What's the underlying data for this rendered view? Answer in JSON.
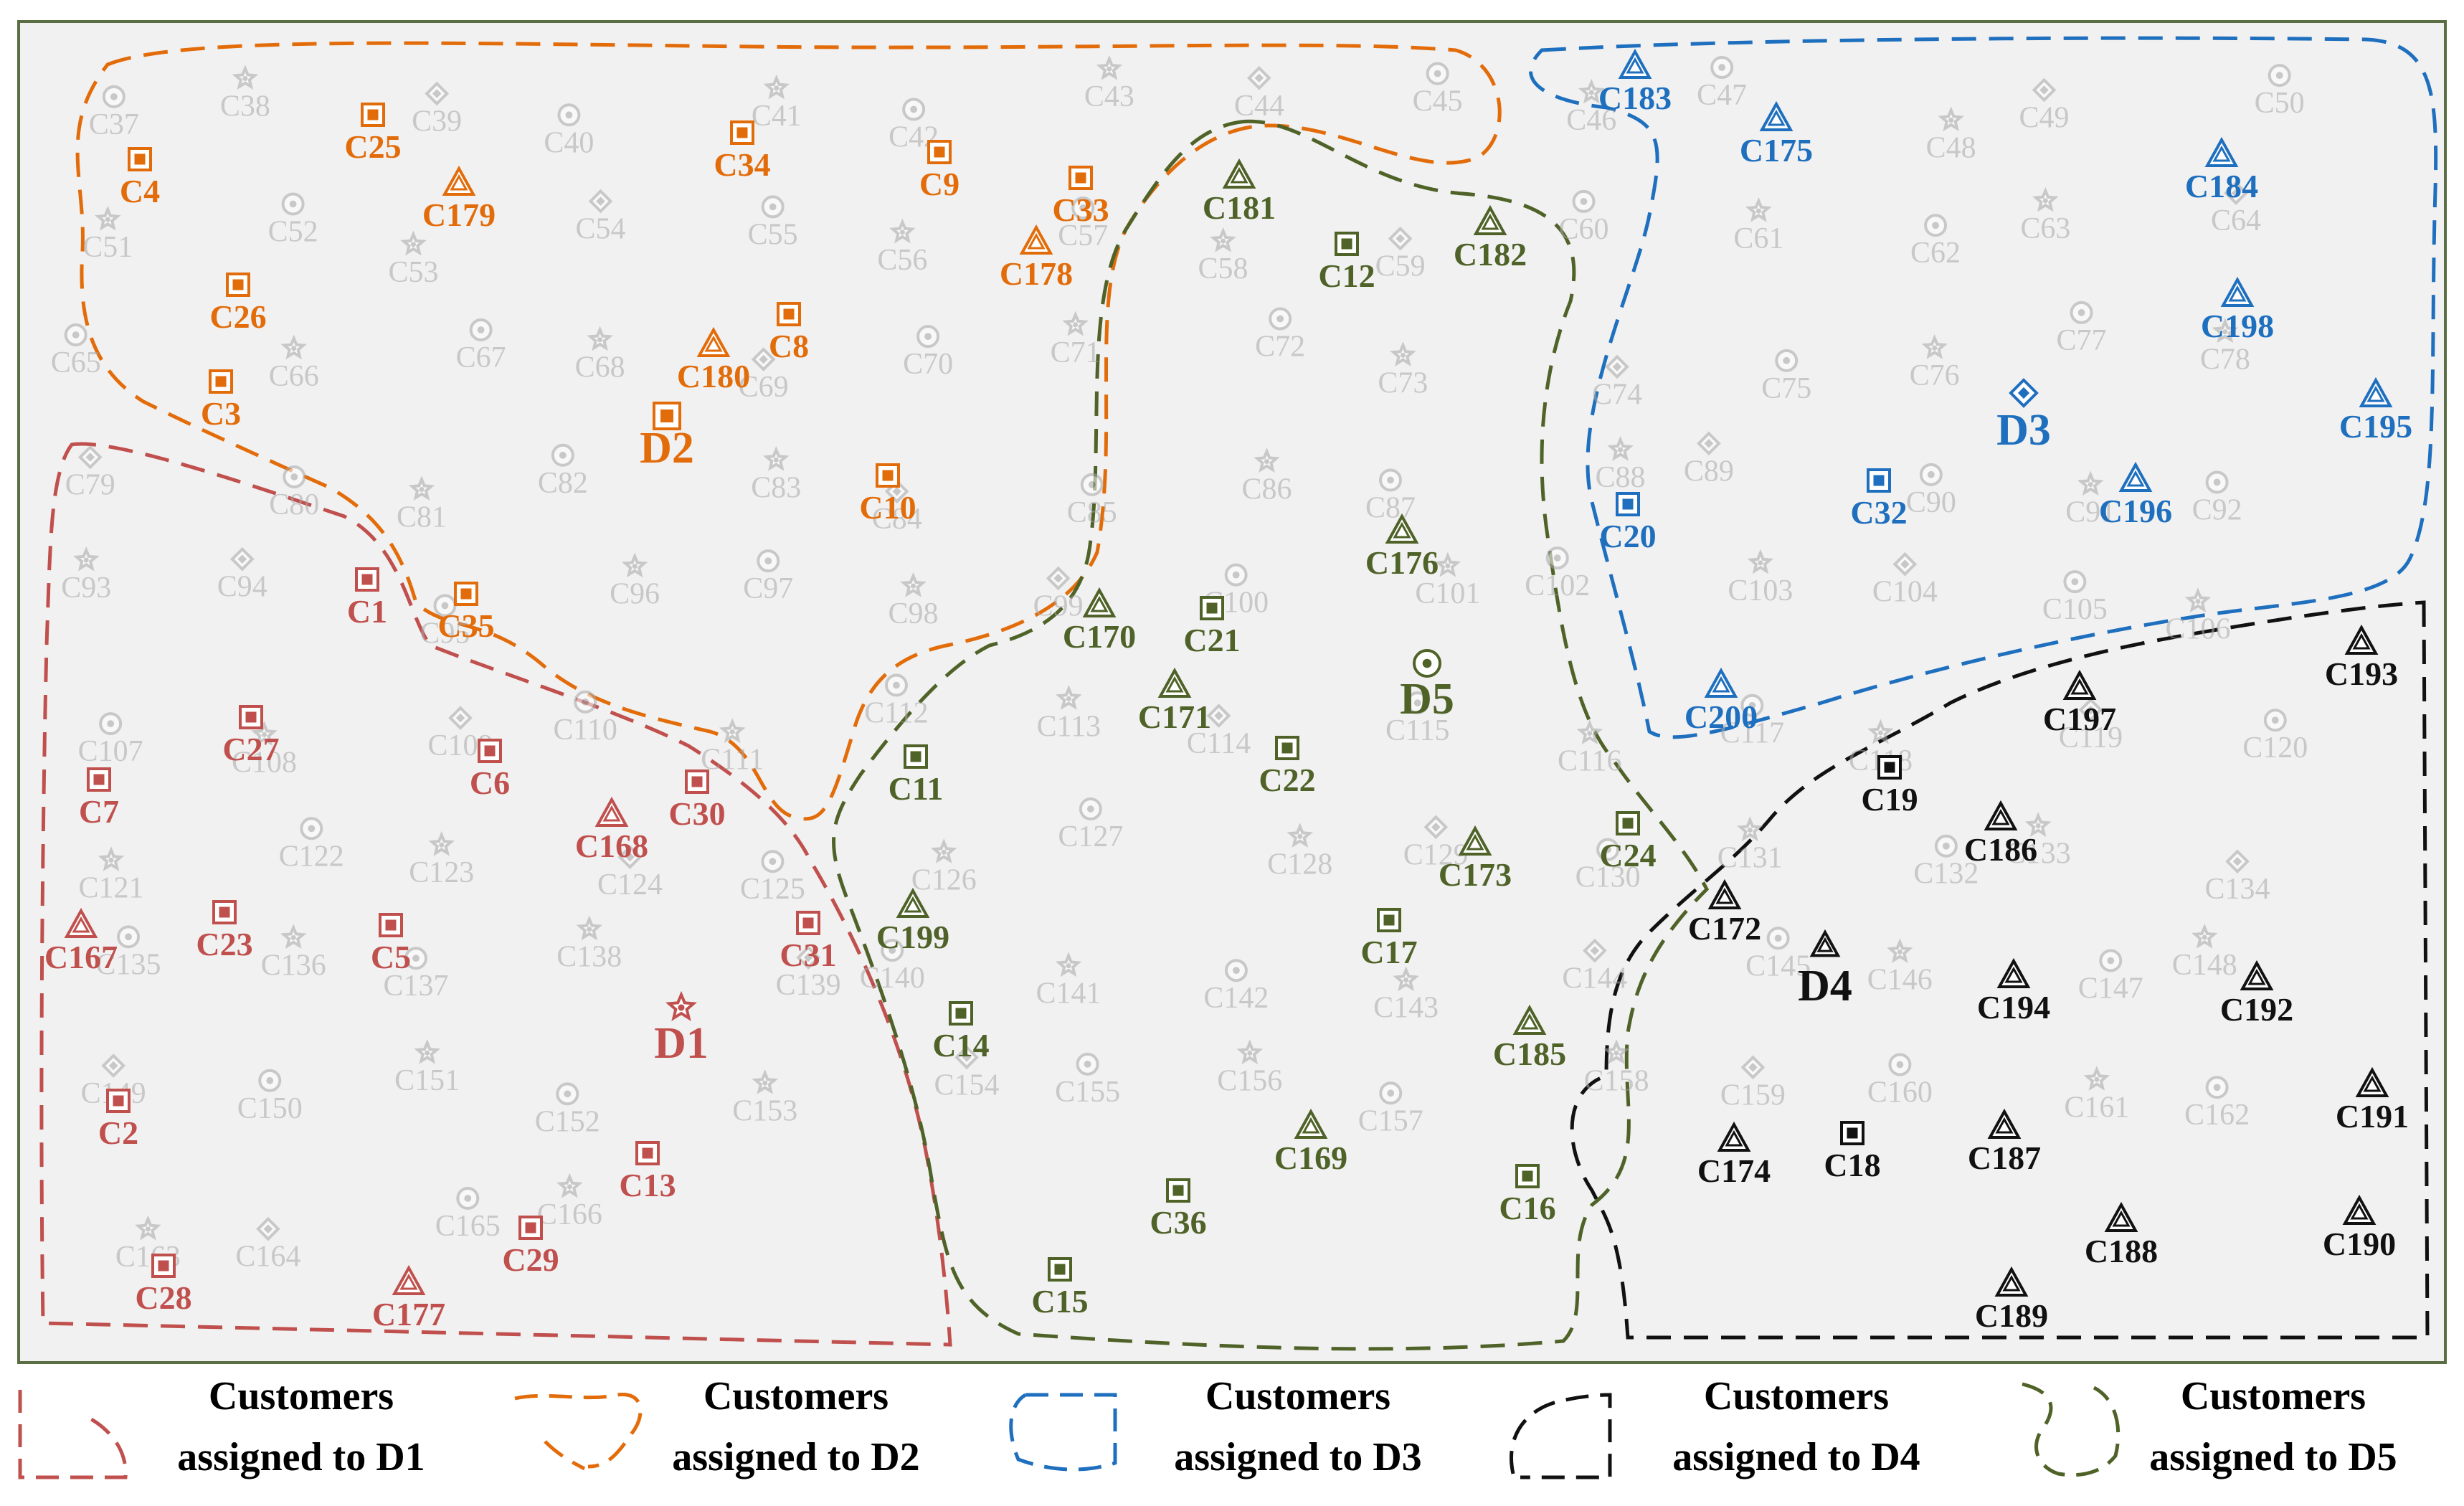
{
  "colors": {
    "D1": "#c0504d",
    "D2": "#e36c0a",
    "D3": "#1f6fbf",
    "D4": "#111111",
    "D5": "#4f6228",
    "background_point": "#a8a8a8"
  },
  "depots": [
    {
      "id": "D1",
      "icon": "star-icon",
      "color": "D1"
    },
    {
      "id": "D2",
      "icon": "square-icon",
      "color": "D2"
    },
    {
      "id": "D3",
      "icon": "diamond-icon",
      "color": "D3"
    },
    {
      "id": "D4",
      "icon": "triangle-icon",
      "color": "D4"
    },
    {
      "id": "D5",
      "icon": "circle-icon",
      "color": "D5"
    }
  ],
  "assigned_customers": {
    "D1": [
      "C1",
      "C2",
      "C5",
      "C6",
      "C7",
      "C13",
      "C23",
      "C27",
      "C28",
      "C29",
      "C30",
      "C31",
      "C167",
      "C168",
      "C177"
    ],
    "D2": [
      "C3",
      "C4",
      "C8",
      "C9",
      "C10",
      "C25",
      "C26",
      "C33",
      "C34",
      "C35",
      "C178",
      "C179",
      "C180"
    ],
    "D3": [
      "C20",
      "C32",
      "C175",
      "C183",
      "C184",
      "C195",
      "C196",
      "C198",
      "C200"
    ],
    "D4": [
      "C18",
      "C19",
      "C172",
      "C174",
      "C186",
      "C187",
      "C188",
      "C189",
      "C190",
      "C191",
      "C192",
      "C193",
      "C194",
      "C197"
    ],
    "D5": [
      "C11",
      "C12",
      "C14",
      "C15",
      "C16",
      "C17",
      "C21",
      "C22",
      "C24",
      "C36",
      "C169",
      "C170",
      "C171",
      "C173",
      "C176",
      "C181",
      "C182",
      "C185",
      "C199"
    ]
  },
  "background_customers": [
    "C37",
    "C38",
    "C39",
    "C40",
    "C41",
    "C42",
    "C43",
    "C44",
    "C45",
    "C46",
    "C47",
    "C48",
    "C49",
    "C50",
    "C51",
    "C52",
    "C53",
    "C54",
    "C55",
    "C56",
    "C57",
    "C58",
    "C59",
    "C60",
    "C61",
    "C62",
    "C63",
    "C64",
    "C65",
    "C66",
    "C67",
    "C68",
    "C69",
    "C70",
    "C71",
    "C72",
    "C73",
    "C74",
    "C75",
    "C76",
    "C77",
    "C78",
    "C79",
    "C80",
    "C81",
    "C82",
    "C83",
    "C84",
    "C85",
    "C86",
    "C87",
    "C88",
    "C89",
    "C90",
    "C91",
    "C92",
    "C93",
    "C94",
    "C95",
    "C96",
    "C97",
    "C98",
    "C99",
    "C100",
    "C101",
    "C102",
    "C103",
    "C104",
    "C105",
    "C106",
    "C107",
    "C108",
    "C109",
    "C110",
    "C111",
    "C112",
    "C113",
    "C114",
    "C115",
    "C116",
    "C117",
    "C118",
    "C119",
    "C120",
    "C121",
    "C122",
    "C123",
    "C124",
    "C125",
    "C126",
    "C127",
    "C128",
    "C129",
    "C130",
    "C131",
    "C132",
    "C133",
    "C134",
    "C135",
    "C136",
    "C137",
    "C138",
    "C139",
    "C140",
    "C141",
    "C142",
    "C143",
    "C144",
    "C145",
    "C146",
    "C147",
    "C148",
    "C149",
    "C150",
    "C151",
    "C152",
    "C153",
    "C154",
    "C155",
    "C156",
    "C157",
    "C158",
    "C159",
    "C160",
    "C161",
    "C162",
    "C163",
    "C164",
    "C165",
    "C166"
  ],
  "legend": [
    {
      "line1": "Customers",
      "line2": "assigned to D1",
      "color": "D1"
    },
    {
      "line1": "Customers",
      "line2": "assigned to D2",
      "color": "D2"
    },
    {
      "line1": "Customers",
      "line2": "assigned to D3",
      "color": "D3"
    },
    {
      "line1": "Customers",
      "line2": "assigned to D4",
      "color": "D4"
    },
    {
      "line1": "Customers",
      "line2": "assigned to D5",
      "color": "D5"
    }
  ]
}
